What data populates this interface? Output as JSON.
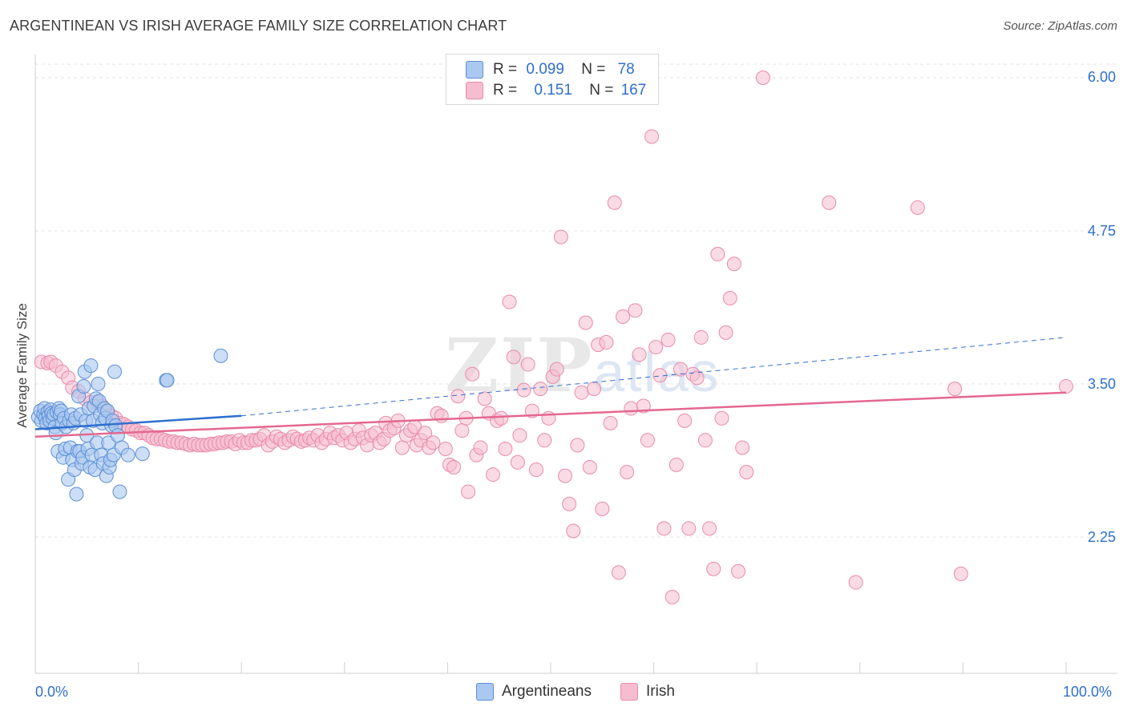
{
  "title": "ARGENTINEAN VS IRISH AVERAGE FAMILY SIZE CORRELATION CHART",
  "source": "Source: ZipAtlas.com",
  "watermark": {
    "zip": "ZIP",
    "atlas": "atlas"
  },
  "legend": {
    "rows": [
      {
        "r_label": "R =",
        "r_value": "0.099",
        "n_label": "N =",
        "n_value": "78"
      },
      {
        "r_label": "R =",
        "r_value": "0.151",
        "n_label": "N =",
        "n_value": "167"
      }
    ]
  },
  "bottom_legend": [
    "Argentineans",
    "Irish"
  ],
  "colors": {
    "argentineans_fill": "#aac8f0",
    "argentineans_stroke": "#5b8fd6",
    "argentineans_line": "#2f6fce",
    "irish_fill": "#f6bdd0",
    "irish_stroke": "#e98aab",
    "irish_line": "#e4688f",
    "tick_label": "#2f6fce",
    "grid": "#e4e4e4"
  },
  "chart_data": {
    "type": "scatter",
    "title": "ARGENTINEAN VS IRISH AVERAGE FAMILY SIZE CORRELATION CHART",
    "xlabel": "",
    "ylabel": "Average Family Size",
    "x_tick_labels": [
      "0.0%",
      "100.0%"
    ],
    "y_tick_labels": [
      "6.00",
      "4.75",
      "3.50",
      "2.25"
    ],
    "y_ticks": [
      6.0,
      4.75,
      3.5,
      2.25
    ],
    "xlim": [
      0,
      100
    ],
    "ylim": [
      1.3,
      6.1
    ],
    "grid": "horizontal dashed",
    "series": [
      {
        "name": "Argentineans",
        "R": 0.099,
        "N": 78,
        "trend": {
          "x": [
            0,
            20
          ],
          "y": [
            3.13,
            3.24
          ]
        },
        "trend_extended": {
          "x": [
            20,
            100
          ],
          "y": [
            3.24,
            3.88
          ]
        },
        "points": [
          [
            0.3,
            3.23
          ],
          [
            0.5,
            3.28
          ],
          [
            0.6,
            3.2
          ],
          [
            0.8,
            3.25
          ],
          [
            0.9,
            3.3
          ],
          [
            1.0,
            3.22
          ],
          [
            1.1,
            3.18
          ],
          [
            1.2,
            3.27
          ],
          [
            1.3,
            3.24
          ],
          [
            1.4,
            3.2
          ],
          [
            1.5,
            3.29
          ],
          [
            1.6,
            3.26
          ],
          [
            1.7,
            3.22
          ],
          [
            1.8,
            3.25
          ],
          [
            1.9,
            3.15
          ],
          [
            2.0,
            3.1
          ],
          [
            2.1,
            3.27
          ],
          [
            2.2,
            2.95
          ],
          [
            2.3,
            3.3
          ],
          [
            2.4,
            3.25
          ],
          [
            2.5,
            3.28
          ],
          [
            2.6,
            3.18
          ],
          [
            2.7,
            2.9
          ],
          [
            2.8,
            3.22
          ],
          [
            2.9,
            2.97
          ],
          [
            3.0,
            3.15
          ],
          [
            3.2,
            2.72
          ],
          [
            3.3,
            3.2
          ],
          [
            3.4,
            2.98
          ],
          [
            3.5,
            3.25
          ],
          [
            3.6,
            2.88
          ],
          [
            3.7,
            3.18
          ],
          [
            3.8,
            2.8
          ],
          [
            3.9,
            3.22
          ],
          [
            4.0,
            2.6
          ],
          [
            4.1,
            2.95
          ],
          [
            4.2,
            3.4
          ],
          [
            4.3,
            2.95
          ],
          [
            4.4,
            3.25
          ],
          [
            4.5,
            2.85
          ],
          [
            4.6,
            2.9
          ],
          [
            4.7,
            3.48
          ],
          [
            4.8,
            3.6
          ],
          [
            4.9,
            3.2
          ],
          [
            5.0,
            3.08
          ],
          [
            5.1,
            2.97
          ],
          [
            5.2,
            3.3
          ],
          [
            5.3,
            2.82
          ],
          [
            5.4,
            3.65
          ],
          [
            5.5,
            2.92
          ],
          [
            5.6,
            3.2
          ],
          [
            5.7,
            3.32
          ],
          [
            5.8,
            2.8
          ],
          [
            5.9,
            3.38
          ],
          [
            6.0,
            3.02
          ],
          [
            6.1,
            3.5
          ],
          [
            6.2,
            3.36
          ],
          [
            6.3,
            3.25
          ],
          [
            6.4,
            2.92
          ],
          [
            6.5,
            3.18
          ],
          [
            6.6,
            2.85
          ],
          [
            6.7,
            3.3
          ],
          [
            6.8,
            3.22
          ],
          [
            6.9,
            2.75
          ],
          [
            7.0,
            3.28
          ],
          [
            7.1,
            3.02
          ],
          [
            7.2,
            2.82
          ],
          [
            7.3,
            2.88
          ],
          [
            7.4,
            3.16
          ],
          [
            7.5,
            3.2
          ],
          [
            7.6,
            2.92
          ],
          [
            7.7,
            3.6
          ],
          [
            7.8,
            3.16
          ],
          [
            8.0,
            3.08
          ],
          [
            8.2,
            2.62
          ],
          [
            8.4,
            2.98
          ],
          [
            9.0,
            2.92
          ],
          [
            10.4,
            2.93
          ],
          [
            12.7,
            3.53
          ],
          [
            12.8,
            3.53
          ],
          [
            18.0,
            3.73
          ]
        ]
      },
      {
        "name": "Irish",
        "R": 0.151,
        "N": 167,
        "trend": {
          "x": [
            0,
            100
          ],
          "y": [
            3.07,
            3.43
          ]
        },
        "points": [
          [
            0.6,
            3.68
          ],
          [
            1.2,
            3.67
          ],
          [
            1.5,
            3.68
          ],
          [
            2.0,
            3.65
          ],
          [
            2.6,
            3.6
          ],
          [
            3.2,
            3.55
          ],
          [
            3.6,
            3.47
          ],
          [
            4.2,
            3.44
          ],
          [
            4.8,
            3.38
          ],
          [
            5.4,
            3.35
          ],
          [
            6.0,
            3.35
          ],
          [
            6.5,
            3.32
          ],
          [
            7.0,
            3.28
          ],
          [
            7.4,
            3.24
          ],
          [
            7.8,
            3.22
          ],
          [
            8.2,
            3.18
          ],
          [
            8.6,
            3.17
          ],
          [
            9.0,
            3.15
          ],
          [
            9.4,
            3.13
          ],
          [
            9.8,
            3.12
          ],
          [
            10.2,
            3.1
          ],
          [
            10.6,
            3.1
          ],
          [
            11.0,
            3.08
          ],
          [
            11.4,
            3.06
          ],
          [
            11.8,
            3.05
          ],
          [
            12.2,
            3.05
          ],
          [
            12.6,
            3.04
          ],
          [
            13.0,
            3.03
          ],
          [
            13.4,
            3.03
          ],
          [
            13.8,
            3.02
          ],
          [
            14.2,
            3.02
          ],
          [
            14.6,
            3.01
          ],
          [
            15.0,
            3.0
          ],
          [
            15.4,
            3.01
          ],
          [
            15.8,
            3.0
          ],
          [
            16.2,
            3.0
          ],
          [
            16.6,
            3.0
          ],
          [
            17.0,
            3.01
          ],
          [
            17.4,
            3.01
          ],
          [
            17.8,
            3.02
          ],
          [
            18.2,
            3.02
          ],
          [
            18.6,
            3.03
          ],
          [
            19.0,
            3.03
          ],
          [
            19.4,
            3.01
          ],
          [
            19.8,
            3.04
          ],
          [
            20.2,
            3.02
          ],
          [
            20.6,
            3.02
          ],
          [
            21.0,
            3.04
          ],
          [
            21.4,
            3.04
          ],
          [
            21.8,
            3.05
          ],
          [
            22.2,
            3.08
          ],
          [
            22.6,
            3.0
          ],
          [
            23.0,
            3.03
          ],
          [
            23.4,
            3.07
          ],
          [
            23.8,
            3.05
          ],
          [
            24.2,
            3.02
          ],
          [
            24.6,
            3.04
          ],
          [
            25.0,
            3.07
          ],
          [
            25.4,
            3.05
          ],
          [
            25.8,
            3.03
          ],
          [
            26.2,
            3.04
          ],
          [
            26.6,
            3.06
          ],
          [
            27.0,
            3.04
          ],
          [
            27.4,
            3.08
          ],
          [
            27.8,
            3.02
          ],
          [
            28.2,
            3.05
          ],
          [
            28.6,
            3.1
          ],
          [
            29.0,
            3.06
          ],
          [
            29.4,
            3.08
          ],
          [
            29.8,
            3.04
          ],
          [
            30.2,
            3.1
          ],
          [
            30.6,
            3.02
          ],
          [
            31.0,
            3.05
          ],
          [
            31.4,
            3.12
          ],
          [
            31.8,
            3.06
          ],
          [
            32.2,
            3.0
          ],
          [
            32.6,
            3.08
          ],
          [
            33.0,
            3.1
          ],
          [
            33.4,
            3.02
          ],
          [
            33.8,
            3.05
          ],
          [
            34.0,
            3.18
          ],
          [
            34.4,
            3.12
          ],
          [
            34.8,
            3.14
          ],
          [
            35.2,
            3.2
          ],
          [
            35.6,
            2.98
          ],
          [
            36.0,
            3.08
          ],
          [
            36.4,
            3.12
          ],
          [
            36.8,
            3.15
          ],
          [
            37.0,
            3.0
          ],
          [
            37.4,
            3.04
          ],
          [
            37.8,
            3.1
          ],
          [
            38.2,
            2.98
          ],
          [
            38.6,
            3.02
          ],
          [
            39.0,
            3.26
          ],
          [
            39.4,
            3.24
          ],
          [
            39.8,
            2.97
          ],
          [
            40.2,
            2.84
          ],
          [
            40.6,
            2.82
          ],
          [
            41.0,
            3.4
          ],
          [
            41.4,
            3.12
          ],
          [
            41.8,
            3.22
          ],
          [
            42.0,
            2.62
          ],
          [
            42.4,
            3.58
          ],
          [
            42.8,
            2.92
          ],
          [
            43.2,
            2.98
          ],
          [
            43.6,
            3.38
          ],
          [
            44.0,
            3.26
          ],
          [
            44.4,
            2.76
          ],
          [
            44.8,
            3.2
          ],
          [
            45.2,
            3.22
          ],
          [
            45.6,
            2.97
          ],
          [
            46.0,
            4.17
          ],
          [
            46.4,
            3.72
          ],
          [
            46.8,
            2.86
          ],
          [
            47.0,
            3.08
          ],
          [
            47.4,
            3.45
          ],
          [
            47.8,
            3.66
          ],
          [
            48.2,
            3.28
          ],
          [
            48.6,
            2.8
          ],
          [
            49.0,
            3.46
          ],
          [
            49.4,
            3.04
          ],
          [
            49.8,
            3.22
          ],
          [
            50.2,
            3.56
          ],
          [
            50.6,
            3.62
          ],
          [
            51.0,
            4.7
          ],
          [
            51.4,
            2.75
          ],
          [
            51.8,
            2.52
          ],
          [
            52.2,
            2.3
          ],
          [
            52.6,
            3.0
          ],
          [
            53.0,
            3.43
          ],
          [
            53.4,
            4.0
          ],
          [
            53.8,
            2.82
          ],
          [
            54.2,
            3.46
          ],
          [
            54.6,
            3.82
          ],
          [
            55.0,
            2.48
          ],
          [
            55.4,
            3.84
          ],
          [
            55.8,
            3.18
          ],
          [
            56.2,
            4.98
          ],
          [
            56.6,
            1.96
          ],
          [
            57.0,
            4.05
          ],
          [
            57.4,
            2.78
          ],
          [
            57.8,
            3.3
          ],
          [
            58.2,
            4.1
          ],
          [
            58.6,
            3.74
          ],
          [
            59.0,
            3.32
          ],
          [
            59.4,
            3.04
          ],
          [
            59.8,
            5.52
          ],
          [
            60.2,
            3.8
          ],
          [
            60.6,
            3.57
          ],
          [
            61.0,
            2.32
          ],
          [
            61.4,
            3.86
          ],
          [
            61.8,
            1.76
          ],
          [
            62.2,
            2.84
          ],
          [
            62.6,
            3.62
          ],
          [
            63.0,
            3.2
          ],
          [
            63.4,
            2.32
          ],
          [
            63.8,
            3.58
          ],
          [
            64.2,
            3.55
          ],
          [
            64.6,
            3.88
          ],
          [
            65.0,
            3.04
          ],
          [
            65.4,
            2.32
          ],
          [
            65.8,
            1.99
          ],
          [
            66.2,
            4.56
          ],
          [
            66.6,
            3.22
          ],
          [
            67.0,
            3.92
          ],
          [
            67.4,
            4.2
          ],
          [
            67.8,
            4.48
          ],
          [
            68.2,
            1.97
          ],
          [
            68.6,
            2.98
          ],
          [
            69.0,
            2.78
          ],
          [
            70.6,
            6.0
          ],
          [
            77.0,
            4.98
          ],
          [
            79.6,
            1.88
          ],
          [
            85.6,
            4.94
          ],
          [
            89.2,
            3.46
          ],
          [
            89.8,
            1.95
          ],
          [
            100.0,
            3.48
          ]
        ]
      }
    ]
  }
}
